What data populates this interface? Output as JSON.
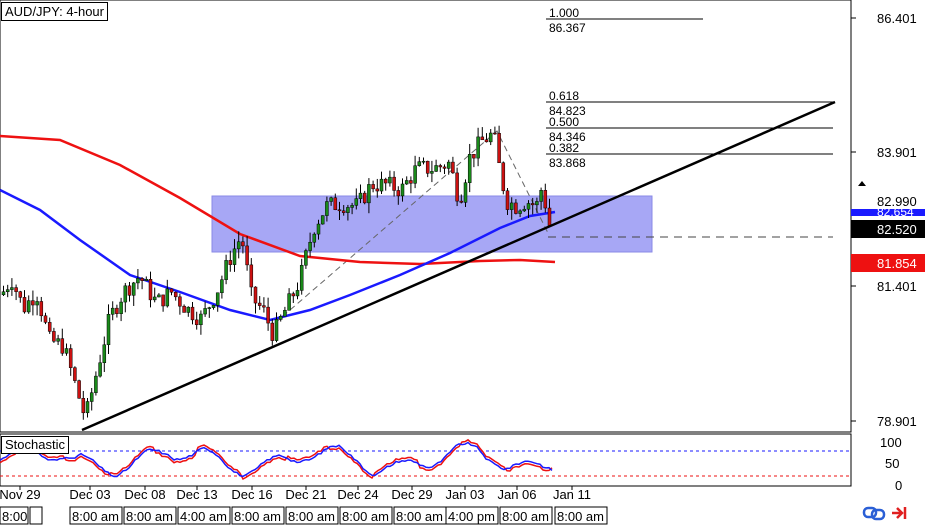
{
  "window": {
    "title": "AUD/JPY: 4-hour"
  },
  "colors": {
    "candle_up": "#1a8a1a",
    "candle_down": "#cc1111",
    "ma_blue": "#1a1aff",
    "ma_red": "#ee1111",
    "zone_fill": "#a7a7f5",
    "trendline": "#000000",
    "stoch_k": "#1a1aff",
    "stoch_d": "#ee1111"
  },
  "fib_levels": [
    {
      "ratio": "1.000",
      "price": "86.367"
    },
    {
      "ratio": "0.618",
      "price": "84.823"
    },
    {
      "ratio": "0.500",
      "price": "84.346"
    },
    {
      "ratio": "0.382",
      "price": "83.868"
    }
  ],
  "price_axis": {
    "ticks": [
      "86.401",
      "83.901",
      "81.401",
      "78.901"
    ],
    "current_price": "82.990",
    "current_price_partial": "82.654",
    "zone_label": "82.520",
    "red_ma_label": "81.854"
  },
  "date_axis": {
    "ticks": [
      "Nov 29",
      "Dec 03",
      "Dec 08",
      "Dec 13",
      "Dec 16",
      "Dec 21",
      "Dec 24",
      "Dec 29",
      "Jan 03",
      "Jan 06",
      "Jan 11"
    ]
  },
  "time_strip": {
    "items": [
      "8:00",
      "",
      "8:00 am",
      "8:00 am",
      "4:00 am",
      "8:00 am",
      "8:00 am",
      "8:00 am",
      "8:00 am",
      "4:00 pm",
      "8:00 am",
      "8:00 am"
    ]
  },
  "stochastic": {
    "label": "Stochastic",
    "ticks": [
      "100",
      "50",
      "0"
    ]
  },
  "chart_data": {
    "type": "candlestick",
    "title": "AUD/JPY: 4-hour",
    "ylim": [
      78.5,
      87.0
    ],
    "key_points": [
      {
        "date": "Nov 29",
        "price": 81.5
      },
      {
        "date": "Dec 03",
        "price": 79.0
      },
      {
        "date": "Dec 08",
        "price": 81.5
      },
      {
        "date": "Dec 13",
        "price": 81.0
      },
      {
        "date": "Dec 16",
        "price": 82.5
      },
      {
        "date": "Dec 16",
        "price": 80.6
      },
      {
        "date": "Dec 21",
        "price": 82.6
      },
      {
        "date": "Dec 24",
        "price": 83.3
      },
      {
        "date": "Dec 29",
        "price": 83.5
      },
      {
        "date": "Jan 03",
        "price": 84.3
      },
      {
        "date": "Jan 06",
        "price": 83.0
      },
      {
        "date": "Jan 06",
        "price": 82.5
      },
      {
        "date": "Jan 06",
        "price": 82.99
      }
    ],
    "blue_ma_level": 82.654,
    "red_ma_level": 81.854,
    "zone": [
      81.7,
      83.0
    ],
    "fibonacci": {
      "1.000": 86.367,
      "0.618": 84.823,
      "0.500": 84.346,
      "0.382": 83.868
    },
    "stochastic": {
      "levels": [
        80,
        20
      ],
      "range": [
        0,
        100
      ]
    }
  }
}
